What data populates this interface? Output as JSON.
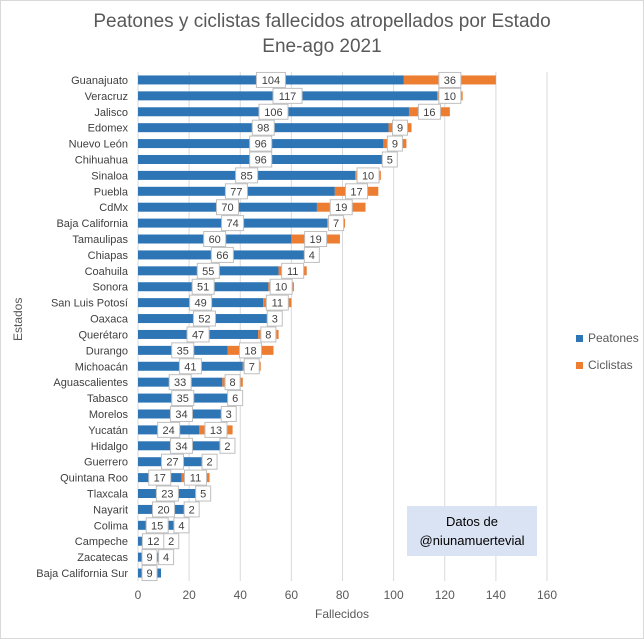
{
  "chart_data": {
    "type": "bar",
    "orientation": "horizontal",
    "stacked": true,
    "title": "Peatones y ciclistas fallecidos atropellados por Estado",
    "subtitle": "Ene-ago 2021",
    "xlabel": "Fallecidos",
    "ylabel": "Estados",
    "xlim": [
      0,
      160
    ],
    "xticks": [
      0,
      20,
      40,
      60,
      80,
      100,
      120,
      140,
      160
    ],
    "grid": true,
    "legend_position": "right",
    "categories": [
      "Guanajuato",
      "Veracruz",
      "Jalisco",
      "Edomex",
      "Nuevo León",
      "Chihuahua",
      "Sinaloa",
      "Puebla",
      "CdMx",
      "Baja California",
      "Tamaulipas",
      "Chiapas",
      "Coahuila",
      "Sonora",
      "San Luis Potosí",
      "Oaxaca",
      "Querétaro",
      "Durango",
      "Michoacán",
      "Aguascalientes",
      "Tabasco",
      "Morelos",
      "Yucatán",
      "Hidalgo",
      "Guerrero",
      "Quintana Roo",
      "Tlaxcala",
      "Nayarit",
      "Colima",
      "Campeche",
      "Zacatecas",
      "Baja California Sur"
    ],
    "series": [
      {
        "name": "Peatones",
        "color": "#2e75b6",
        "values": [
          104,
          117,
          106,
          98,
          96,
          96,
          85,
          77,
          70,
          74,
          60,
          66,
          55,
          51,
          49,
          52,
          47,
          35,
          41,
          33,
          35,
          34,
          24,
          34,
          27,
          17,
          23,
          20,
          15,
          12,
          9,
          9
        ]
      },
      {
        "name": "Ciclistas",
        "color": "#ed7d31",
        "values": [
          36,
          10,
          16,
          9,
          9,
          5,
          10,
          17,
          19,
          7,
          19,
          4,
          11,
          10,
          11,
          3,
          8,
          18,
          7,
          8,
          6,
          3,
          13,
          2,
          2,
          11,
          5,
          2,
          4,
          2,
          4,
          0
        ]
      }
    ]
  },
  "credit": {
    "line1": "Datos de",
    "line2": "@niunamuertevial"
  }
}
